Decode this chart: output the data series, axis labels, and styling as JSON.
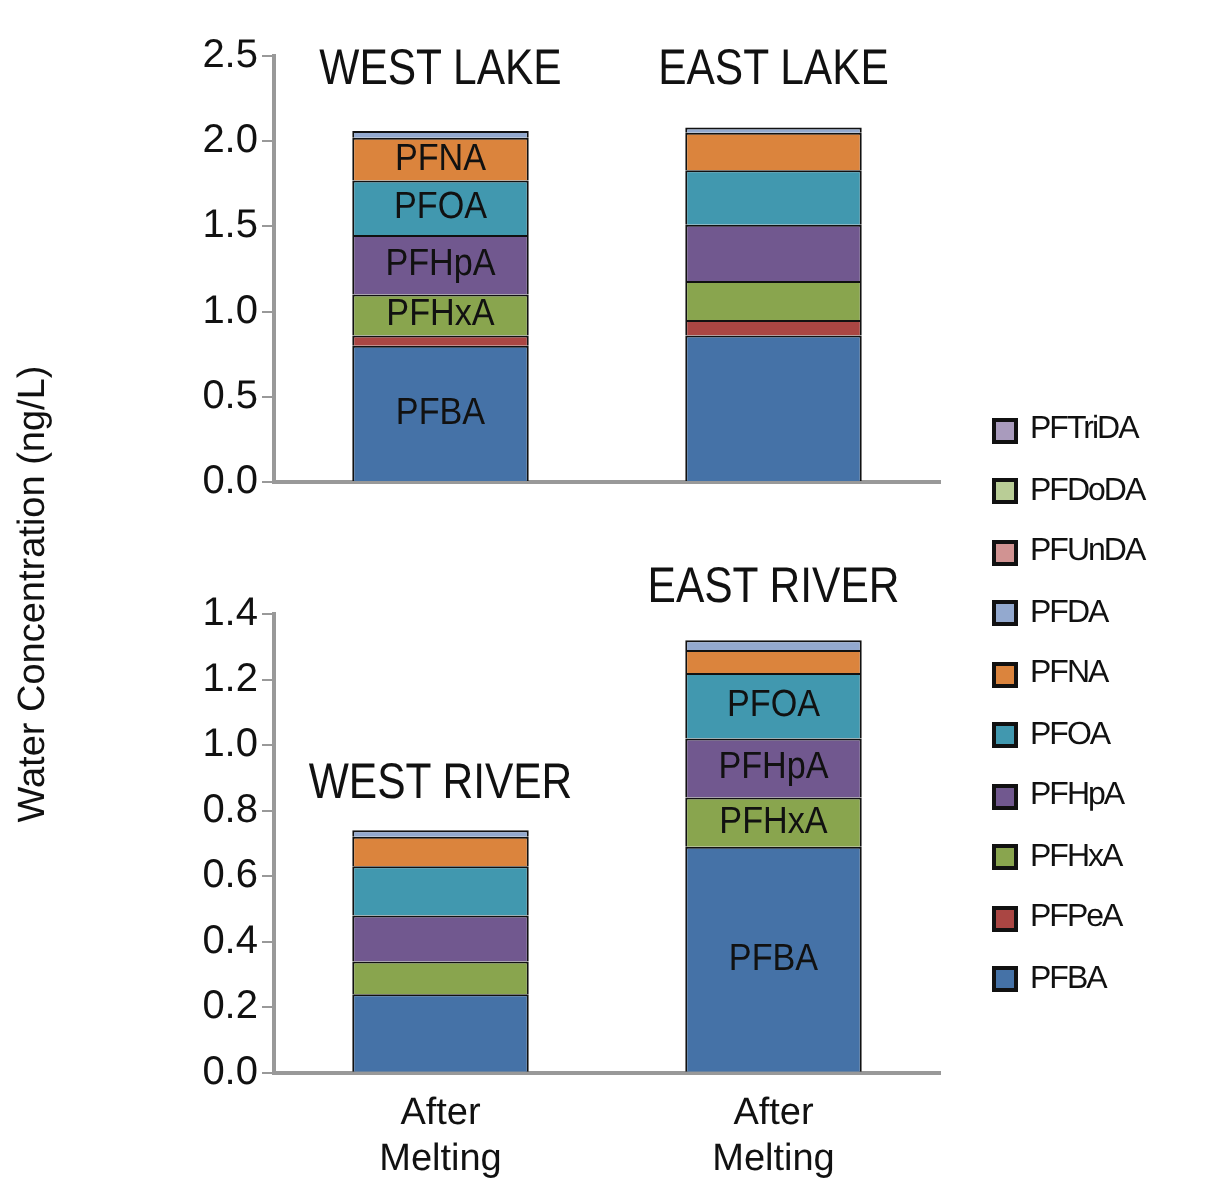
{
  "chart_data": [
    {
      "type": "bar",
      "stacked": true,
      "ylabel": "Water Concentration (ng/L)",
      "categories": [
        null,
        null
      ],
      "tick_labels": "y",
      "grid": false,
      "legend": "right",
      "annotations": [
        "WEST LAKE",
        "EAST LAKE"
      ],
      "ylim": [
        0,
        2.5
      ],
      "yticks": [
        {
          "value": 0,
          "label": "0.0"
        },
        0.5,
        {
          "value": 1,
          "label": "1.0"
        },
        1.5,
        {
          "value": 2,
          "label": "2.0"
        },
        2.5
      ],
      "series": [
        {
          "name": "PFBA",
          "color": "#4572a7",
          "values": [
            0.8,
            0.86
          ],
          "value_labels": [
            "PFBA",
            null
          ]
        },
        {
          "name": "PFPeA",
          "color": "#aa4643",
          "values": [
            0.06,
            0.09
          ]
        },
        {
          "name": "PFHxA",
          "color": "#89a54e",
          "values": [
            0.24,
            0.23
          ],
          "value_labels": [
            "PFHxA",
            null
          ]
        },
        {
          "name": "PFHpA",
          "color": "#71588f",
          "values": [
            0.35,
            0.33
          ],
          "value_labels": [
            "PFHpA",
            null
          ]
        },
        {
          "name": "PFOA",
          "color": "#4198af",
          "values": [
            0.32,
            0.32
          ],
          "value_labels": [
            "PFOA",
            null
          ]
        },
        {
          "name": "PFNA",
          "color": "#db843d",
          "values": [
            0.25,
            0.22
          ],
          "value_labels": [
            "PFNA",
            null
          ]
        },
        {
          "name": "PFDA",
          "color": "#93a9cf",
          "values": [
            0.04,
            0.03
          ]
        },
        {
          "name": "PFUnDA",
          "color": "#d19392",
          "values": [
            null,
            null
          ]
        },
        {
          "name": "PFDoDA",
          "color": "#b9cd96",
          "values": [
            null,
            null
          ]
        },
        {
          "name": "PFTriDA",
          "color": "#a99bbd",
          "values": [
            null,
            null
          ]
        }
      ]
    },
    {
      "type": "bar",
      "stacked": true,
      "categories": [
        "After Melting",
        "After Melting"
      ],
      "grid": false,
      "annotations": [
        "WEST RIVER",
        "EAST RIVER"
      ],
      "ylim": [
        0,
        1.4
      ],
      "yticks": [
        {
          "value": 0,
          "label": "0.0"
        },
        0.2,
        0.4,
        0.6,
        0.8,
        {
          "value": 1,
          "label": "1.0"
        },
        1.2,
        1.4
      ],
      "series": [
        {
          "color": "#4572a7",
          "values": [
            0.24,
            0.69
          ],
          "value_labels": [
            null,
            "PFBA"
          ]
        },
        {
          "color": "#89a54e",
          "values": [
            0.1,
            0.15
          ],
          "value_labels": [
            null,
            "PFHxA"
          ]
        },
        {
          "color": "#71588f",
          "values": [
            0.14,
            0.18
          ],
          "value_labels": [
            null,
            "PFHpA"
          ]
        },
        {
          "color": "#4198af",
          "values": [
            0.15,
            0.2
          ],
          "value_labels": [
            null,
            "PFOA"
          ]
        },
        {
          "color": "#db843d",
          "values": [
            0.09,
            0.07
          ]
        },
        {
          "color": "#93a9cf",
          "values": [
            0.02,
            0.03
          ]
        }
      ]
    }
  ]
}
